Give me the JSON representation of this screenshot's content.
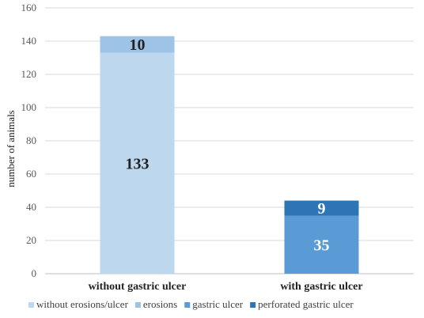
{
  "chart_data": {
    "type": "bar",
    "stacked": true,
    "title": "",
    "xlabel": "",
    "ylabel": "number of animals",
    "ylim": [
      0,
      160
    ],
    "yticks": [
      0,
      20,
      40,
      60,
      80,
      100,
      120,
      140,
      160
    ],
    "grid": true,
    "legend_position": "bottom",
    "categories": [
      "without gastric ulcer",
      "with gastric ulcer"
    ],
    "series": [
      {
        "name": "without erosions/ulcer",
        "values": [
          133,
          0
        ],
        "color": "#bdd7ee",
        "label_color": "#222222"
      },
      {
        "name": "erosions",
        "values": [
          10,
          0
        ],
        "color": "#9dc3e6",
        "label_color": "#222222"
      },
      {
        "name": "gastric ulcer",
        "values": [
          0,
          35
        ],
        "color": "#5b9bd5",
        "label_color": "#ffffff"
      },
      {
        "name": "perforated gastric ulcer",
        "values": [
          0,
          9
        ],
        "color": "#2e75b6",
        "label_color": "#ffffff"
      }
    ]
  }
}
